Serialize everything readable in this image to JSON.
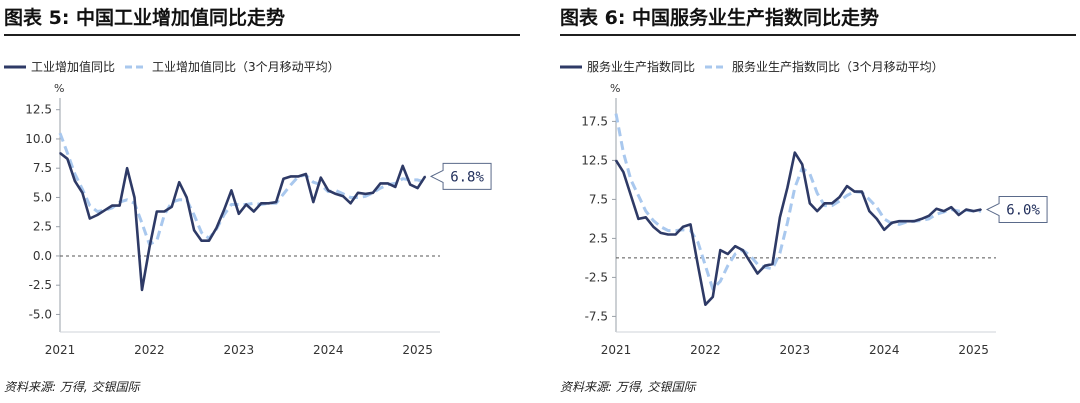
{
  "colors": {
    "main": "#2e3a66",
    "avg": "#a9c8ee",
    "zero": "#555555",
    "axis": "#9aa0a8"
  },
  "chart_data": [
    {
      "type": "line",
      "title": "图表 5: 中国工业增加值同比走势",
      "source": "资料来源: 万得, 交银国际",
      "unit": "%",
      "ylim": [
        -6.5,
        13.5
      ],
      "yticks": [
        12.5,
        10.0,
        7.5,
        5.0,
        2.5,
        0.0,
        -2.5,
        -5.0
      ],
      "ytick_labels": [
        "12.5",
        "10.0",
        "7.5",
        "5.0",
        "2.5",
        "0.0",
        "-2.5",
        "-5.0"
      ],
      "x_range": [
        2021.0,
        2025.25
      ],
      "xticks": [
        2021,
        2022,
        2023,
        2024,
        2025
      ],
      "xtick_labels": [
        "2021",
        "2022",
        "2023",
        "2024",
        "2025"
      ],
      "legend": [
        "工业增加值同比",
        "工业增加值同比（3个月移动平均）"
      ],
      "callout": "6.8%",
      "series": [
        {
          "name": "工业增加值同比",
          "style": "solid",
          "x": [
            2021.0,
            2021.083,
            2021.167,
            2021.25,
            2021.333,
            2021.417,
            2021.5,
            2021.583,
            2021.667,
            2021.75,
            2021.833,
            2021.917,
            2022.0,
            2022.083,
            2022.167,
            2022.25,
            2022.333,
            2022.417,
            2022.5,
            2022.583,
            2022.667,
            2022.75,
            2022.833,
            2022.917,
            2023.0,
            2023.083,
            2023.167,
            2023.25,
            2023.333,
            2023.417,
            2023.5,
            2023.583,
            2023.667,
            2023.75,
            2023.833,
            2023.917,
            2024.0,
            2024.083,
            2024.167,
            2024.25,
            2024.333,
            2024.417,
            2024.5,
            2024.583,
            2024.667,
            2024.75,
            2024.833,
            2024.917,
            2025.0,
            2025.083,
            2025.167
          ],
          "values": [
            8.8,
            8.3,
            6.4,
            5.4,
            3.2,
            3.5,
            3.9,
            4.3,
            4.3,
            7.5,
            5.0,
            -2.9,
            0.7,
            3.8,
            3.8,
            4.2,
            6.3,
            5.0,
            2.2,
            1.3,
            1.3,
            2.4,
            3.9,
            5.6,
            3.6,
            4.4,
            3.8,
            4.5,
            4.5,
            4.6,
            6.6,
            6.8,
            6.8,
            7.0,
            4.6,
            6.7,
            5.6,
            5.3,
            5.1,
            4.5,
            5.4,
            5.3,
            5.4,
            6.2,
            6.2,
            5.9,
            7.7,
            6.1,
            5.8,
            6.8,
            null
          ],
          "valid_count": 50
        },
        {
          "name": "工业增加值同比（3个月移动平均）",
          "style": "dashed",
          "x": [
            2021.0,
            2021.083,
            2021.167,
            2021.25,
            2021.333,
            2021.417,
            2021.5,
            2021.583,
            2021.667,
            2021.75,
            2021.833,
            2021.917,
            2022.0,
            2022.083,
            2022.167,
            2022.25,
            2022.333,
            2022.417,
            2022.5,
            2022.583,
            2022.667,
            2022.75,
            2022.833,
            2022.917,
            2023.0,
            2023.083,
            2023.167,
            2023.25,
            2023.333,
            2023.417,
            2023.5,
            2023.583,
            2023.667,
            2023.75,
            2023.833,
            2023.917,
            2024.0,
            2024.083,
            2024.167,
            2024.25,
            2024.333,
            2024.417,
            2024.5,
            2024.583,
            2024.667,
            2024.75,
            2024.833,
            2024.917,
            2025.0,
            2025.083
          ],
          "values": [
            10.5,
            8.8,
            7.0,
            5.7,
            4.3,
            3.8,
            3.9,
            4.1,
            4.6,
            4.8,
            4.5,
            2.8,
            1.0,
            1.3,
            3.5,
            4.6,
            4.8,
            4.8,
            3.5,
            2.0,
            1.5,
            2.3,
            3.5,
            4.4,
            4.4,
            4.4,
            4.5,
            4.4,
            4.5,
            4.5,
            5.3,
            6.1,
            6.8,
            6.9,
            6.3,
            6.1,
            5.5,
            5.6,
            5.3,
            5.0,
            5.0,
            5.1,
            5.4,
            5.8,
            6.1,
            6.2,
            6.6,
            6.5,
            6.5,
            6.3
          ]
        }
      ]
    },
    {
      "type": "line",
      "title": "图表 6: 中国服务业生产指数同比走势",
      "source": "资料来源: 万得, 交银国际",
      "unit": "%",
      "ylim": [
        -9.5,
        20.5
      ],
      "yticks": [
        17.5,
        12.5,
        7.5,
        2.5,
        -2.5,
        -7.5
      ],
      "ytick_labels": [
        "17.5",
        "12.5",
        "7.5",
        "2.5",
        "-2.5",
        "-7.5"
      ],
      "x_range": [
        2021.0,
        2025.25
      ],
      "xticks": [
        2021,
        2022,
        2023,
        2024,
        2025
      ],
      "xtick_labels": [
        "2021",
        "2022",
        "2023",
        "2024",
        "2025"
      ],
      "legend": [
        "服务业生产指数同比",
        "服务业生产指数同比（3个月移动平均）"
      ],
      "callout": "6.0%",
      "series": [
        {
          "name": "服务业生产指数同比",
          "style": "solid",
          "x": [
            2021.0,
            2021.083,
            2021.167,
            2021.25,
            2021.333,
            2021.417,
            2021.5,
            2021.583,
            2021.667,
            2021.75,
            2021.833,
            2021.917,
            2022.0,
            2022.083,
            2022.167,
            2022.25,
            2022.333,
            2022.417,
            2022.5,
            2022.583,
            2022.667,
            2022.75,
            2022.833,
            2022.917,
            2023.0,
            2023.083,
            2023.167,
            2023.25,
            2023.333,
            2023.417,
            2023.5,
            2023.583,
            2023.667,
            2023.75,
            2023.833,
            2023.917,
            2024.0,
            2024.083,
            2024.167,
            2024.25,
            2024.333,
            2024.417,
            2024.5,
            2024.583,
            2024.667,
            2024.75,
            2024.833,
            2024.917,
            2025.0,
            2025.083
          ],
          "values": [
            12.5,
            11.0,
            8.0,
            5.0,
            5.2,
            4.0,
            3.2,
            3.0,
            3.0,
            4.0,
            4.3,
            -1.0,
            -6.0,
            -5.0,
            1.0,
            0.5,
            1.5,
            1.0,
            -0.5,
            -2.0,
            -1.0,
            -0.8,
            5.2,
            9.0,
            13.5,
            12.0,
            7.0,
            6.0,
            7.0,
            7.0,
            7.8,
            9.2,
            8.5,
            8.5,
            6.0,
            5.0,
            3.6,
            4.5,
            4.7,
            4.7,
            4.7,
            5.0,
            5.4,
            6.3,
            6.0,
            6.5,
            5.5,
            6.2,
            6.0,
            6.2
          ]
        },
        {
          "name": "服务业生产指数同比（3个月移动平均）",
          "style": "dashed",
          "x": [
            2021.0,
            2021.083,
            2021.167,
            2021.25,
            2021.333,
            2021.417,
            2021.5,
            2021.583,
            2021.667,
            2021.75,
            2021.833,
            2021.917,
            2022.0,
            2022.083,
            2022.167,
            2022.25,
            2022.333,
            2022.417,
            2022.5,
            2022.583,
            2022.667,
            2022.75,
            2022.833,
            2022.917,
            2023.0,
            2023.083,
            2023.167,
            2023.25,
            2023.333,
            2023.417,
            2023.5,
            2023.583,
            2023.667,
            2023.75,
            2023.833,
            2023.917,
            2024.0,
            2024.083,
            2024.167,
            2024.25,
            2024.333,
            2024.417,
            2024.5,
            2024.583,
            2024.667,
            2024.75,
            2024.833,
            2024.917,
            2025.0,
            2025.083
          ],
          "values": [
            18.5,
            13.5,
            10.0,
            8.0,
            6.0,
            4.8,
            4.0,
            3.5,
            3.5,
            3.6,
            3.5,
            2.0,
            -1.0,
            -4.0,
            -3.0,
            -1.0,
            0.5,
            1.0,
            0.3,
            -0.8,
            -1.2,
            -1.4,
            0.6,
            4.5,
            9.0,
            11.5,
            10.8,
            8.3,
            6.7,
            6.7,
            7.3,
            8.0,
            8.5,
            8.4,
            7.5,
            6.5,
            5.0,
            4.4,
            4.3,
            4.6,
            4.7,
            4.8,
            5.0,
            5.6,
            5.9,
            6.2,
            6.0,
            6.1,
            6.0,
            6.0
          ]
        }
      ]
    }
  ]
}
